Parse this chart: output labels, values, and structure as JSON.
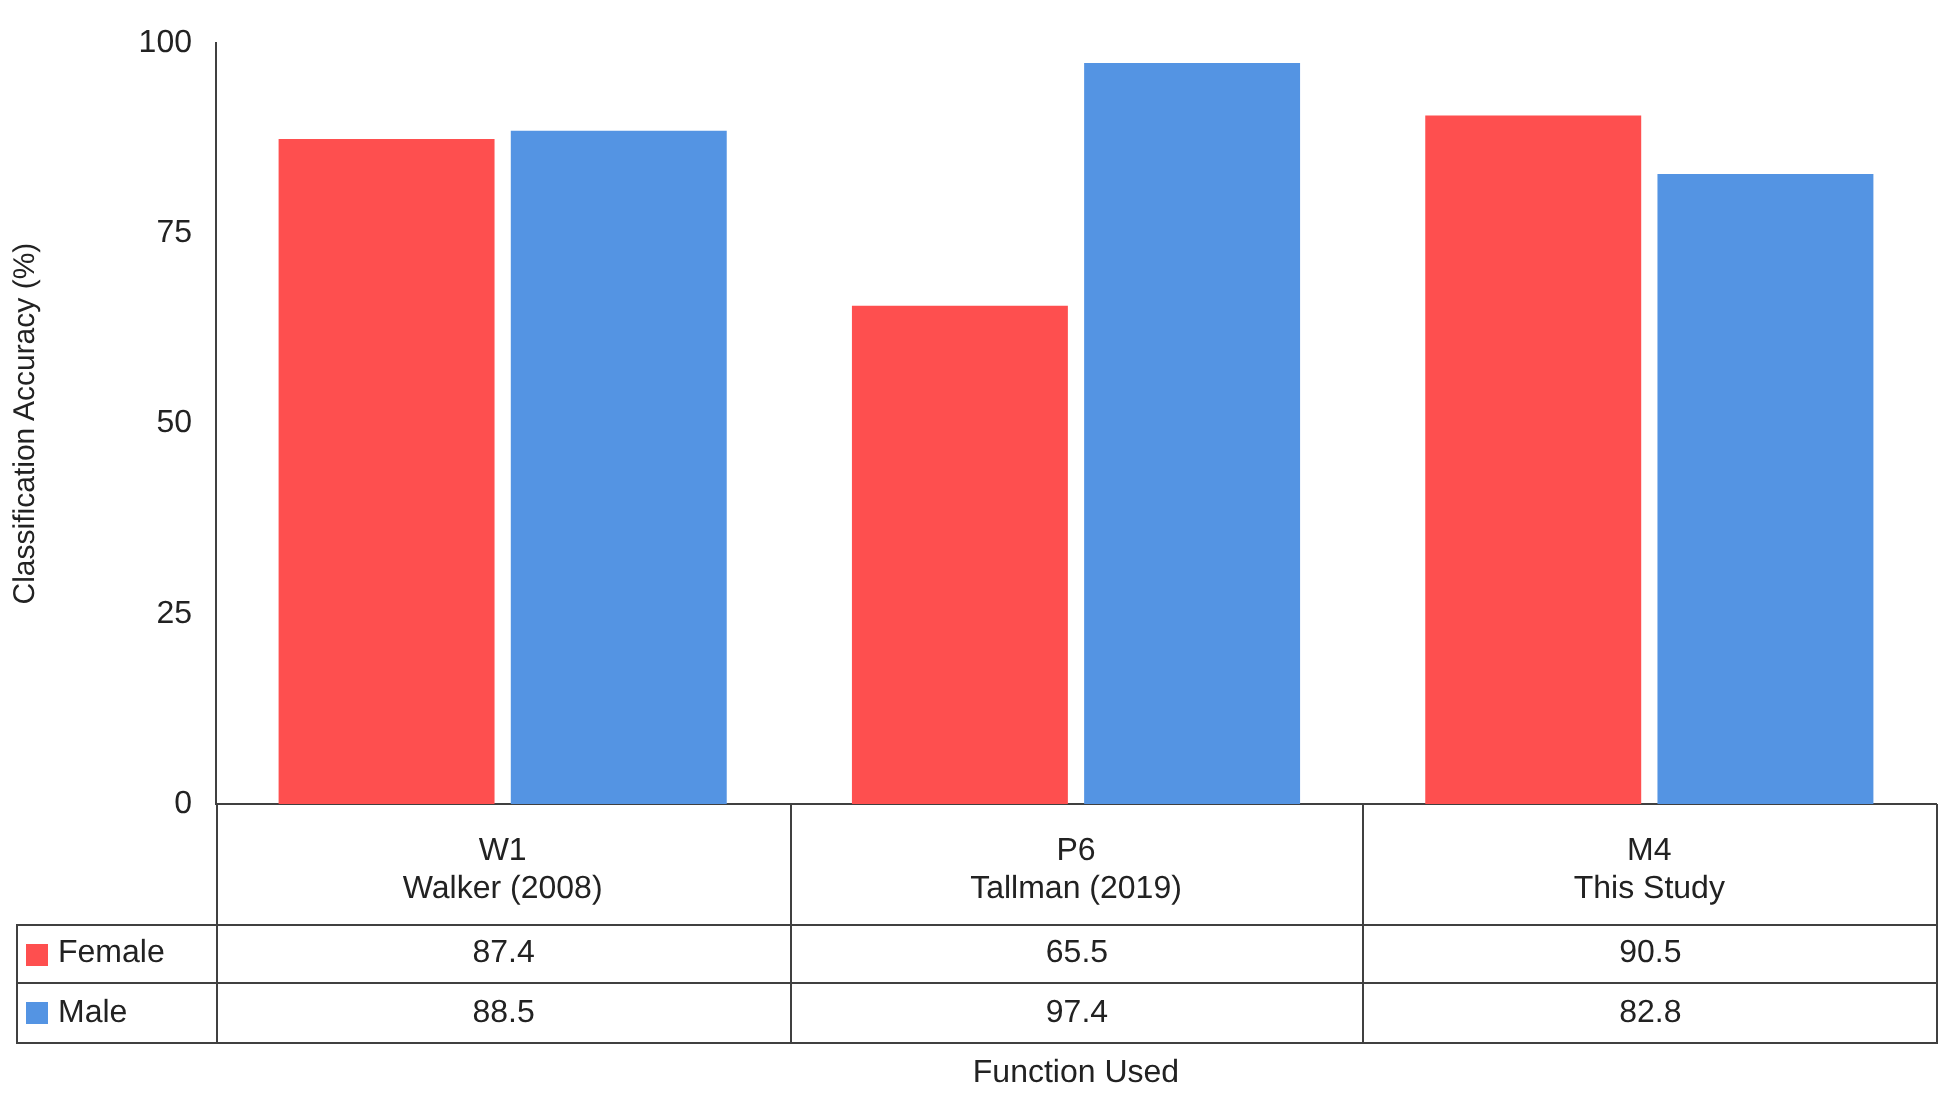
{
  "chart_data": {
    "type": "bar",
    "xlabel": "Function Used",
    "ylabel": "Classification Accuracy (%)",
    "categories": [
      "W1\nWalker (2008)",
      "P6\nTallman (2019)",
      "M4\nThis Study"
    ],
    "series": [
      {
        "name": "Female",
        "color": "#fe4f4f",
        "values": [
          87.4,
          65.5,
          90.5
        ]
      },
      {
        "name": "Male",
        "color": "#5494e3",
        "values": [
          88.5,
          97.4,
          82.8
        ]
      }
    ],
    "ylim": [
      0,
      100
    ],
    "yticks": [
      0,
      25,
      50,
      75,
      100
    ],
    "grid": false,
    "data_labels": true,
    "legend": "bottom left"
  }
}
